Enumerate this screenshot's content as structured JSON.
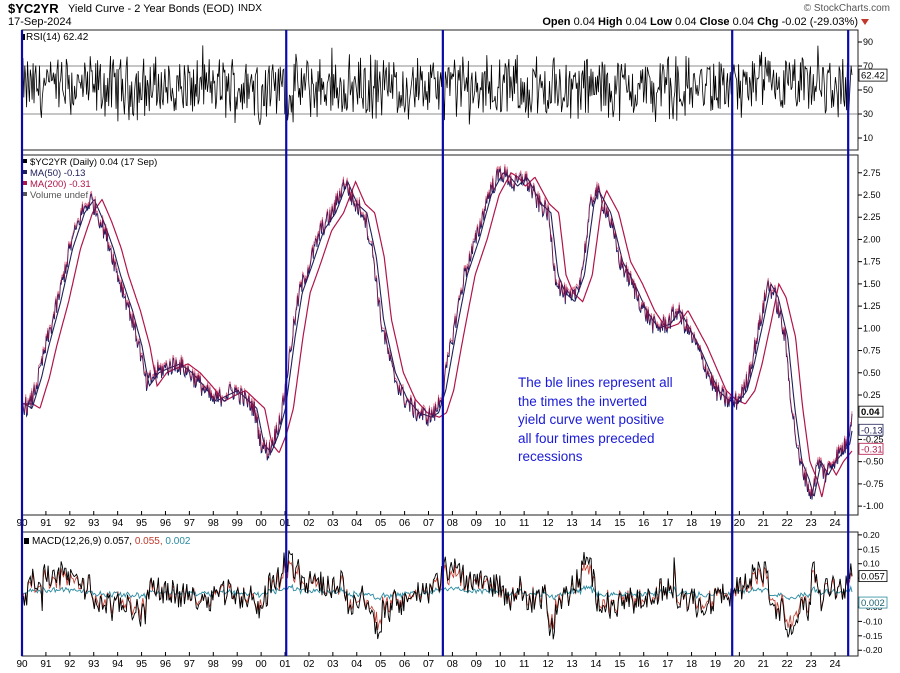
{
  "header": {
    "symbol": "$YC2YR",
    "description": "Yield Curve - 2 Year Bonds (EOD)",
    "exchange": "INDX",
    "date": "17-Sep-2024",
    "brand": "© StockCharts.com",
    "open_label": "Open",
    "open": "0.04",
    "high_label": "High",
    "high": "0.04",
    "low_label": "Low",
    "low": "0.04",
    "close_label": "Close",
    "close": "0.04",
    "chg_label": "Chg",
    "chg": "-0.02 (-29.03%)"
  },
  "annotation": "The ble lines represent all the times the inverted yield curve went positive all four times preceded recessions",
  "colors": {
    "price": "#1a1a60",
    "ma50": "#20205a",
    "ma200": "#b0154a",
    "rsi": "#000000",
    "macd": "#000000",
    "signal": "#c0392b",
    "histogram": "#2a8aa0",
    "vlines": "#0a0aa8",
    "annotation": "#1a1ad6"
  },
  "chart_data": [
    {
      "type": "line",
      "name": "rsi-panel",
      "legend": "RSI(14) 62.42",
      "ylim": [
        0,
        100
      ],
      "yticks": [
        10,
        30,
        50,
        70,
        90
      ],
      "reference_lines": [
        30,
        70
      ],
      "last_value_label": "62.42",
      "last_value": 62.42
    },
    {
      "type": "line",
      "name": "price-panel",
      "legend": [
        "$YC2YR (Daily) 0.04 (17 Sep)",
        "MA(50) -0.13",
        "MA(200) -0.31",
        "Volume undef"
      ],
      "ylim": [
        -1.1,
        2.95
      ],
      "yticks": [
        -1.0,
        -0.75,
        -0.5,
        -0.25,
        0.25,
        0.5,
        0.75,
        1.0,
        1.25,
        1.5,
        1.75,
        2.0,
        2.25,
        2.5,
        2.75
      ],
      "ytick_labels": [
        "-1.00",
        "-0.75",
        "-0.50",
        "-0.25",
        "0.25",
        "0.50",
        "0.75",
        "1.00",
        "1.25",
        "1.50",
        "1.75",
        "2.00",
        "2.25",
        "2.50",
        "2.75"
      ],
      "x_ticks": [
        "90",
        "91",
        "92",
        "93",
        "94",
        "95",
        "96",
        "97",
        "98",
        "99",
        "00",
        "01",
        "02",
        "03",
        "04",
        "05",
        "06",
        "07",
        "08",
        "09",
        "10",
        "11",
        "12",
        "13",
        "14",
        "15",
        "16",
        "17",
        "18",
        "19",
        "20",
        "21",
        "22",
        "23",
        "24"
      ],
      "price_series": {
        "name": "$YC2YR",
        "x": [
          1990.0,
          1990.3,
          1990.7,
          1991.0,
          1991.5,
          1992.0,
          1992.5,
          1992.9,
          1993.3,
          1993.7,
          1994.0,
          1994.5,
          1994.9,
          1995.2,
          1995.6,
          1996.0,
          1996.5,
          1997.0,
          1997.5,
          1998.0,
          1998.5,
          1998.9,
          1999.3,
          1999.7,
          2000.0,
          2000.3,
          2000.6,
          2000.9,
          2001.3,
          2001.6,
          2002.0,
          2002.5,
          2003.0,
          2003.5,
          2003.9,
          2004.3,
          2004.7,
          2005.0,
          2005.5,
          2006.0,
          2006.5,
          2007.0,
          2007.3,
          2007.6,
          2008.0,
          2008.5,
          2009.0,
          2009.5,
          2010.0,
          2010.3,
          2010.6,
          2011.0,
          2011.3,
          2011.6,
          2012.0,
          2012.3,
          2012.6,
          2013.0,
          2013.4,
          2013.8,
          2014.0,
          2014.5,
          2015.0,
          2015.5,
          2016.0,
          2016.5,
          2017.0,
          2017.4,
          2017.8,
          2018.2,
          2018.6,
          2019.0,
          2019.4,
          2019.8,
          2020.2,
          2020.5,
          2020.9,
          2021.2,
          2021.5,
          2021.9,
          2022.2,
          2022.5,
          2022.8,
          2023.0,
          2023.3,
          2023.6,
          2023.9,
          2024.2,
          2024.5,
          2024.71
        ],
        "y": [
          0.15,
          0.1,
          0.45,
          0.8,
          1.3,
          1.9,
          2.3,
          2.45,
          2.2,
          1.9,
          1.6,
          1.2,
          0.8,
          0.35,
          0.5,
          0.55,
          0.6,
          0.5,
          0.35,
          0.18,
          0.25,
          0.3,
          0.2,
          0.1,
          -0.3,
          -0.4,
          -0.2,
          0.1,
          0.9,
          1.4,
          1.7,
          2.1,
          2.3,
          2.65,
          2.4,
          2.3,
          1.8,
          1.1,
          0.5,
          0.2,
          0.05,
          0.0,
          0.05,
          0.3,
          0.9,
          1.6,
          2.0,
          2.5,
          2.75,
          2.7,
          2.6,
          2.7,
          2.55,
          2.4,
          2.3,
          1.6,
          1.4,
          1.3,
          1.6,
          2.4,
          2.55,
          2.3,
          1.75,
          1.5,
          1.2,
          1.0,
          1.05,
          1.2,
          1.0,
          0.8,
          0.55,
          0.3,
          0.2,
          0.15,
          0.3,
          0.6,
          1.1,
          1.5,
          1.35,
          0.9,
          0.1,
          -0.5,
          -0.7,
          -0.9,
          -0.5,
          -0.65,
          -0.5,
          -0.4,
          -0.3,
          0.04
        ]
      },
      "series": [
        {
          "name": "MA(50)",
          "value": -0.13
        },
        {
          "name": "MA(200)",
          "value": -0.31
        }
      ],
      "last_value_labels": [
        "0.04",
        "-0.13",
        "-0.31"
      ],
      "last_values": [
        0.04,
        -0.13,
        -0.31
      ]
    },
    {
      "type": "line",
      "name": "macd-panel",
      "legend_parts": [
        "MACD(12,26,9) 0.057,",
        " 0.055,",
        " 0.002"
      ],
      "ylim": [
        -0.22,
        0.21
      ],
      "yticks": [
        -0.2,
        -0.15,
        -0.1,
        -0.05,
        0.05,
        0.1,
        0.15,
        0.2
      ],
      "ytick_labels": [
        "-0.20",
        "-0.15",
        "-0.10",
        "-0.05",
        "0.05",
        "0.10",
        "0.15",
        "0.20"
      ],
      "x_ticks": [
        "90",
        "91",
        "92",
        "93",
        "94",
        "95",
        "96",
        "97",
        "98",
        "99",
        "00",
        "01",
        "02",
        "03",
        "04",
        "05",
        "06",
        "07",
        "08",
        "09",
        "10",
        "11",
        "12",
        "13",
        "14",
        "15",
        "16",
        "17",
        "18",
        "19",
        "20",
        "21",
        "22",
        "23",
        "24"
      ],
      "series": [
        {
          "name": "MACD",
          "value": 0.057
        },
        {
          "name": "Signal",
          "value": 0.055
        },
        {
          "name": "Histogram",
          "value": 0.002
        }
      ],
      "last_value_labels": [
        "0.057",
        "0.002"
      ]
    },
    {
      "type": "line",
      "name": "vertical-markers",
      "x": [
        1990.0,
        2001.05,
        2007.6,
        2019.7,
        2024.55
      ]
    }
  ]
}
